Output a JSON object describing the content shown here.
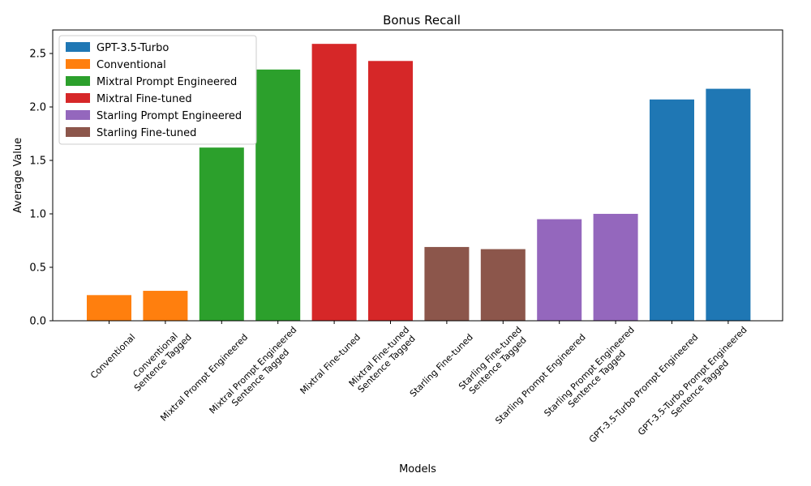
{
  "chart_data": {
    "type": "bar",
    "title": "Bonus Recall",
    "xlabel": "Models",
    "ylabel": "Average Value",
    "ylim": [
      0,
      2.72
    ],
    "yticks": [
      0.0,
      0.5,
      1.0,
      1.5,
      2.0,
      2.5
    ],
    "ytick_labels": [
      "0.0",
      "0.5",
      "1.0",
      "1.5",
      "2.0",
      "2.5"
    ],
    "grid": false,
    "legend_position": "upper-left",
    "legend": [
      {
        "name": "GPT-3.5-Turbo",
        "color": "#1f77b4"
      },
      {
        "name": "Conventional",
        "color": "#ff7f0e"
      },
      {
        "name": "Mixtral Prompt Engineered",
        "color": "#2ca02c"
      },
      {
        "name": "Mixtral Fine-tuned",
        "color": "#d62728"
      },
      {
        "name": "Starling Prompt Engineered",
        "color": "#9467bd"
      },
      {
        "name": "Starling Fine-tuned",
        "color": "#8c564b"
      }
    ],
    "bars": [
      {
        "label": [
          "Conventional"
        ],
        "value": 0.24,
        "color": "#ff7f0e"
      },
      {
        "label": [
          "Conventional",
          "Sentence Tagged"
        ],
        "value": 0.28,
        "color": "#ff7f0e"
      },
      {
        "label": [
          "Mixtral Prompt Engineered"
        ],
        "value": 1.62,
        "color": "#2ca02c"
      },
      {
        "label": [
          "Mixtral Prompt Engineered",
          "Sentence Tagged"
        ],
        "value": 2.35,
        "color": "#2ca02c"
      },
      {
        "label": [
          "Mixtral Fine-tuned"
        ],
        "value": 2.59,
        "color": "#d62728"
      },
      {
        "label": [
          "Mixtral Fine-tuned",
          "Sentence Tagged"
        ],
        "value": 2.43,
        "color": "#d62728"
      },
      {
        "label": [
          "Starling Fine-tuned"
        ],
        "value": 0.69,
        "color": "#8c564b"
      },
      {
        "label": [
          "Starling Fine-tuned",
          "Sentence Tagged"
        ],
        "value": 0.67,
        "color": "#8c564b"
      },
      {
        "label": [
          "Starling Prompt Engineered"
        ],
        "value": 0.95,
        "color": "#9467bd"
      },
      {
        "label": [
          "Starling Prompt Engineered",
          "Sentence Tagged"
        ],
        "value": 1.0,
        "color": "#9467bd"
      },
      {
        "label": [
          "GPT-3.5-Turbo Prompt Engineered"
        ],
        "value": 2.07,
        "color": "#1f77b4"
      },
      {
        "label": [
          "GPT-3.5-Turbo Prompt Engineered",
          "Sentence Tagged"
        ],
        "value": 2.17,
        "color": "#1f77b4"
      }
    ]
  }
}
